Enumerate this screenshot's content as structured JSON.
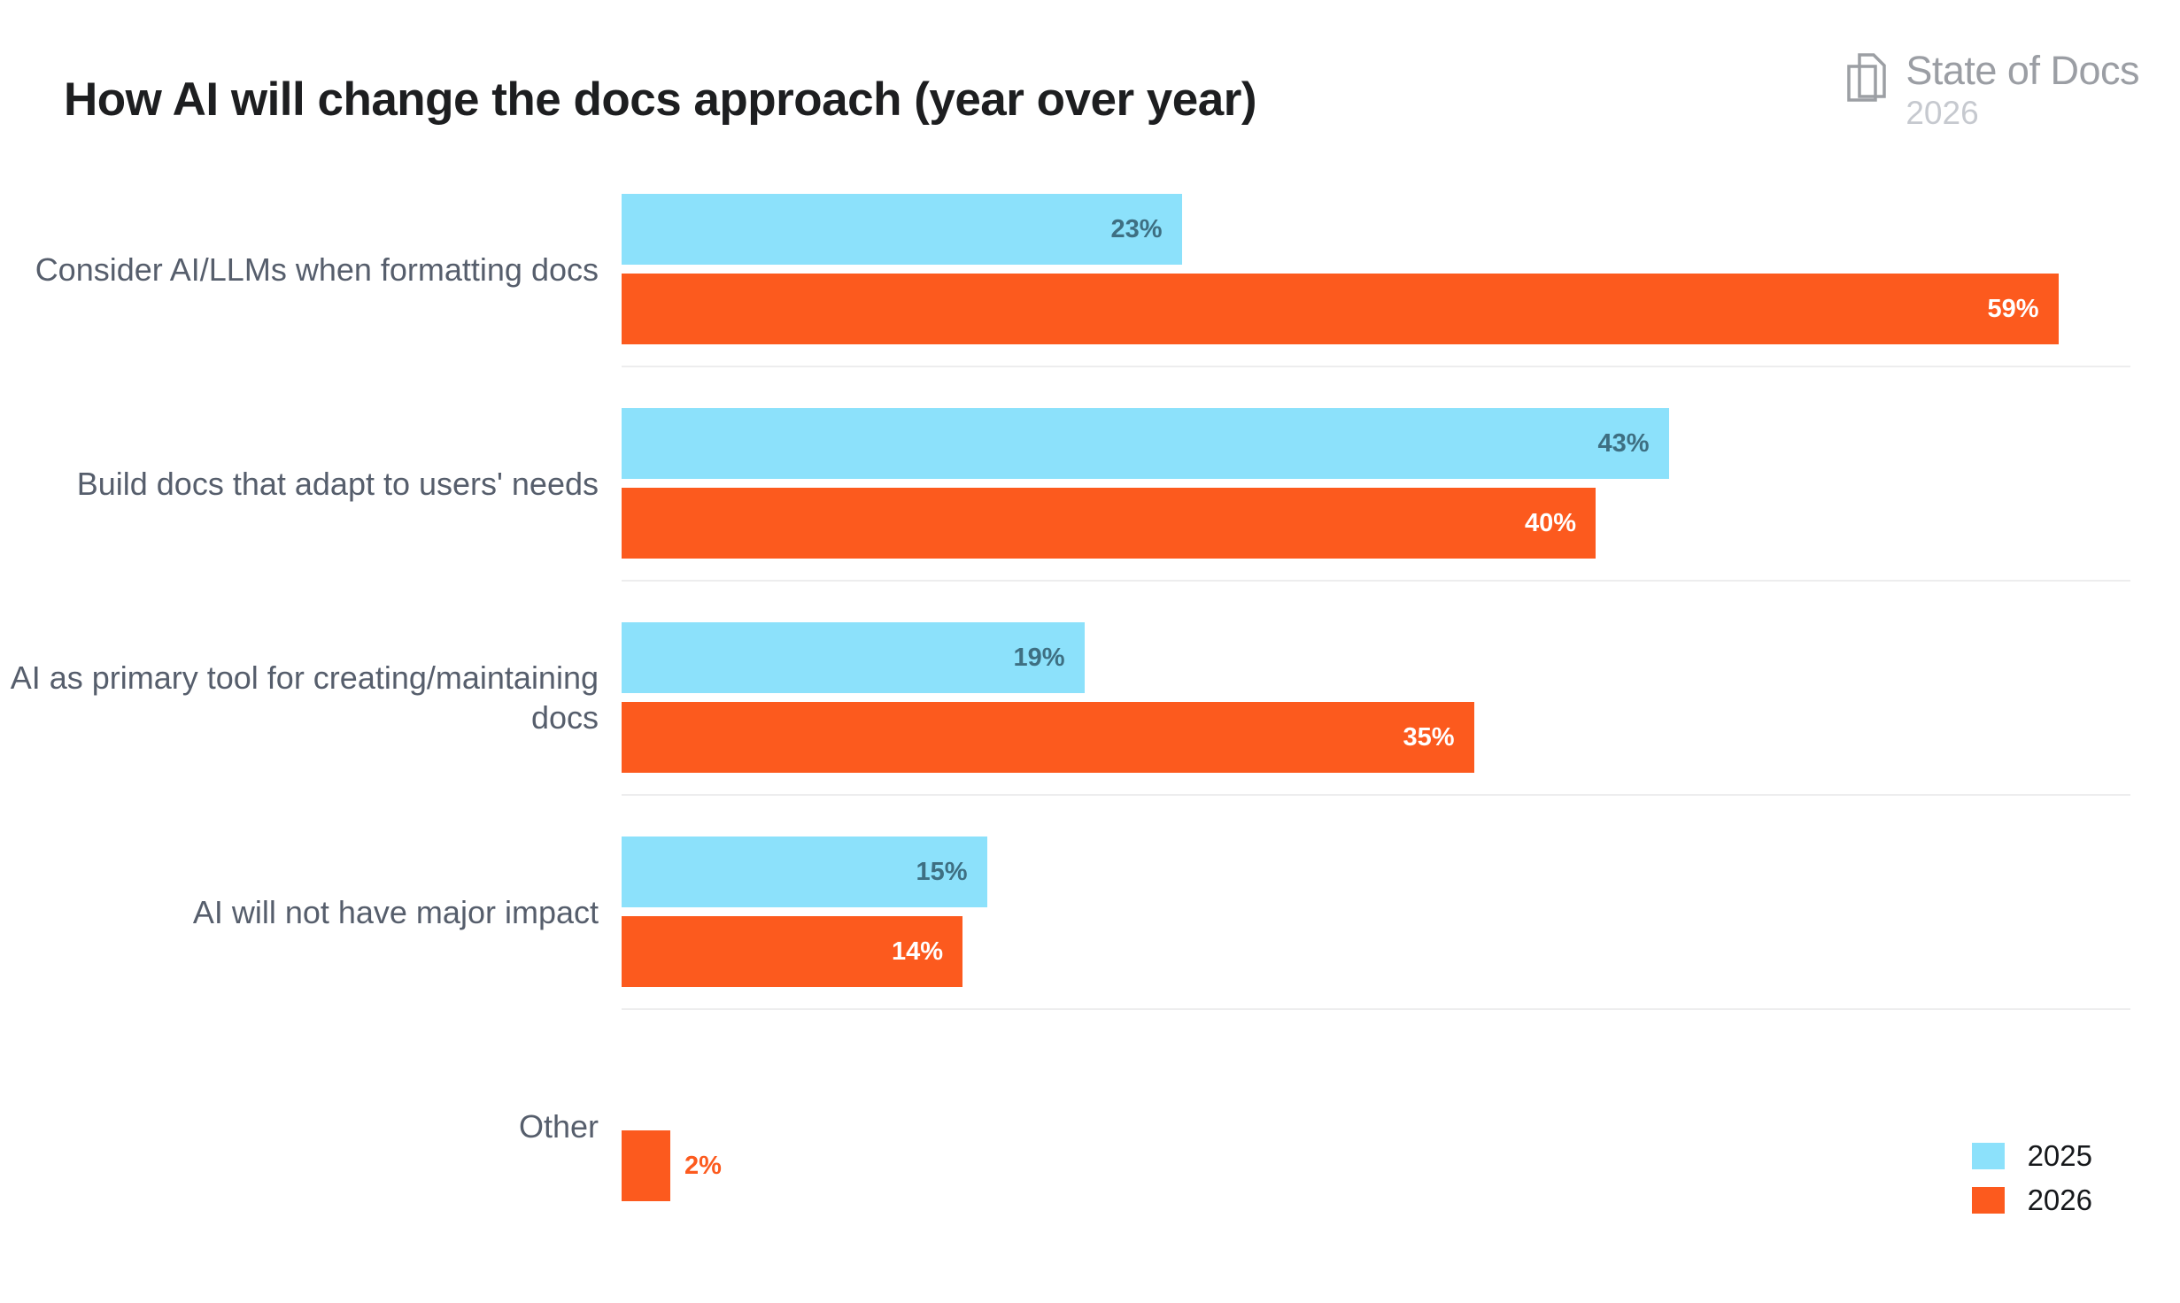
{
  "logo": {
    "name": "State of Docs",
    "year": "2026",
    "icon": "overlapping-docs-icon",
    "text_color": "#9B9EA4",
    "year_color": "#C6C9CF"
  },
  "chart_data": {
    "type": "bar",
    "orientation": "horizontal",
    "title": "How AI will change the docs approach (year over year)",
    "categories": [
      "Consider AI/LLMs when formatting docs",
      "Build docs that adapt to users' needs",
      "AI as primary tool for creating/maintaining docs",
      "AI will not have major impact",
      "Other"
    ],
    "series": [
      {
        "name": "2025",
        "color": "#8CE1FB",
        "value_label_color": "#3E6F82",
        "values": [
          23,
          43,
          19,
          15,
          null
        ]
      },
      {
        "name": "2026",
        "color": "#FC5A1E",
        "value_label_color": "#FFFFFF",
        "values": [
          59,
          40,
          35,
          14,
          2
        ]
      }
    ],
    "value_suffix": "%",
    "xlim": [
      0,
      62
    ],
    "grid": false,
    "value_labels": "inside-end, outside for values <= 3",
    "legend_position": "bottom-right"
  },
  "legend": {
    "items": [
      {
        "label": "2025",
        "color": "#8CE1FB"
      },
      {
        "label": "2026",
        "color": "#FC5A1E"
      }
    ]
  }
}
